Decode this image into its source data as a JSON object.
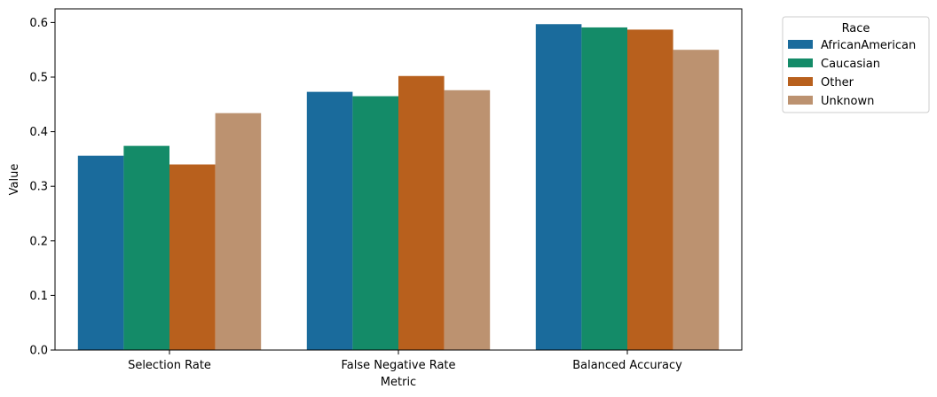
{
  "chart_data": {
    "type": "bar",
    "categories": [
      "Selection Rate",
      "False Negative Rate",
      "Balanced Accuracy"
    ],
    "series": [
      {
        "name": "AfricanAmerican",
        "values": [
          0.356,
          0.473,
          0.597
        ],
        "color": "#1a6b9c"
      },
      {
        "name": "Caucasian",
        "values": [
          0.374,
          0.465,
          0.591
        ],
        "color": "#148b68"
      },
      {
        "name": "Other",
        "values": [
          0.34,
          0.502,
          0.587
        ],
        "color": "#b8601d"
      },
      {
        "name": "Unknown",
        "values": [
          0.434,
          0.476,
          0.55
        ],
        "color": "#bc9270"
      }
    ],
    "xlabel": "Metric",
    "ylabel": "Value",
    "ylim": [
      0,
      0.625
    ],
    "yticks": [
      0.0,
      0.1,
      0.2,
      0.3,
      0.4,
      0.5,
      0.6
    ],
    "ytick_labels": [
      "0.0",
      "0.1",
      "0.2",
      "0.3",
      "0.4",
      "0.5",
      "0.6"
    ],
    "grid": false,
    "legend": {
      "title": "Race",
      "placement": "outside-top-right"
    }
  }
}
